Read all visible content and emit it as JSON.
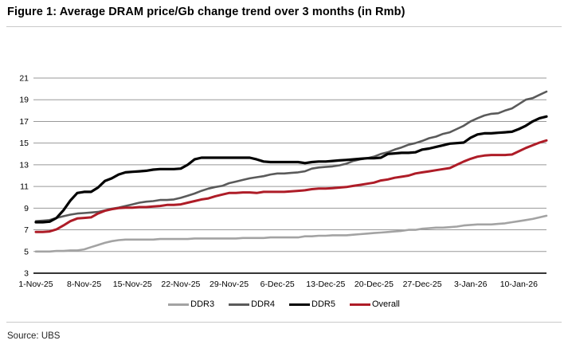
{
  "figure": {
    "title": "Figure 1: Average DRAM price/Gb change trend over 3 months (in Rmb)",
    "source": "Source: UBS"
  },
  "chart_data": {
    "type": "line",
    "title": "Figure 1: Average DRAM price/Gb change trend over 3 months (in Rmb)",
    "xlabel": "",
    "ylabel": "",
    "ylim": [
      3,
      21
    ],
    "y_ticks": [
      3,
      5,
      7,
      9,
      11,
      13,
      15,
      17,
      19,
      21
    ],
    "grid": "horizontal",
    "legend_position": "bottom",
    "x_ticks": [
      {
        "i": 0,
        "label": "1-Nov-25"
      },
      {
        "i": 7,
        "label": "8-Nov-25"
      },
      {
        "i": 14,
        "label": "15-Nov-25"
      },
      {
        "i": 21,
        "label": "22-Nov-25"
      },
      {
        "i": 28,
        "label": "29-Nov-25"
      },
      {
        "i": 35,
        "label": "6-Dec-25"
      },
      {
        "i": 42,
        "label": "13-Dec-25"
      },
      {
        "i": 49,
        "label": "20-Dec-25"
      },
      {
        "i": 56,
        "label": "27-Dec-25"
      },
      {
        "i": 63,
        "label": "3-Jan-26"
      },
      {
        "i": 70,
        "label": "10-Jan-26"
      }
    ],
    "dates": [
      "1-Nov-25",
      "2-Nov-25",
      "3-Nov-25",
      "4-Nov-25",
      "5-Nov-25",
      "6-Nov-25",
      "7-Nov-25",
      "8-Nov-25",
      "9-Nov-25",
      "10-Nov-25",
      "11-Nov-25",
      "12-Nov-25",
      "13-Nov-25",
      "14-Nov-25",
      "15-Nov-25",
      "16-Nov-25",
      "17-Nov-25",
      "18-Nov-25",
      "19-Nov-25",
      "20-Nov-25",
      "21-Nov-25",
      "22-Nov-25",
      "23-Nov-25",
      "24-Nov-25",
      "25-Nov-25",
      "26-Nov-25",
      "27-Nov-25",
      "28-Nov-25",
      "29-Nov-25",
      "30-Nov-25",
      "1-Dec-25",
      "2-Dec-25",
      "3-Dec-25",
      "4-Dec-25",
      "5-Dec-25",
      "6-Dec-25",
      "7-Dec-25",
      "8-Dec-25",
      "9-Dec-25",
      "10-Dec-25",
      "11-Dec-25",
      "12-Dec-25",
      "13-Dec-25",
      "14-Dec-25",
      "15-Dec-25",
      "16-Dec-25",
      "17-Dec-25",
      "18-Dec-25",
      "19-Dec-25",
      "20-Dec-25",
      "21-Dec-25",
      "22-Dec-25",
      "23-Dec-25",
      "24-Dec-25",
      "25-Dec-25",
      "26-Dec-25",
      "27-Dec-25",
      "28-Dec-25",
      "29-Dec-25",
      "30-Dec-25",
      "31-Dec-25",
      "1-Jan-26",
      "2-Jan-26",
      "3-Jan-26",
      "4-Jan-26",
      "5-Jan-26",
      "6-Jan-26",
      "7-Jan-26",
      "8-Jan-26",
      "9-Jan-26",
      "10-Jan-26",
      "11-Jan-26",
      "12-Jan-26",
      "13-Jan-26",
      "14-Jan-26"
    ],
    "series": [
      {
        "name": "DDR3",
        "color": "#a3a3a3",
        "width": 2.6,
        "values": [
          5.0,
          5.0,
          5.0,
          5.05,
          5.05,
          5.1,
          5.1,
          5.2,
          5.4,
          5.6,
          5.8,
          5.95,
          6.05,
          6.1,
          6.1,
          6.1,
          6.1,
          6.1,
          6.15,
          6.15,
          6.15,
          6.15,
          6.15,
          6.2,
          6.2,
          6.2,
          6.2,
          6.2,
          6.2,
          6.2,
          6.25,
          6.25,
          6.25,
          6.25,
          6.3,
          6.3,
          6.3,
          6.3,
          6.3,
          6.4,
          6.4,
          6.45,
          6.45,
          6.5,
          6.5,
          6.5,
          6.55,
          6.6,
          6.65,
          6.7,
          6.75,
          6.8,
          6.85,
          6.9,
          7.0,
          7.0,
          7.1,
          7.15,
          7.2,
          7.2,
          7.25,
          7.3,
          7.4,
          7.45,
          7.5,
          7.5,
          7.5,
          7.55,
          7.6,
          7.7,
          7.8,
          7.9,
          8.0,
          8.15,
          8.3
        ]
      },
      {
        "name": "DDR4",
        "color": "#5a5a5a",
        "width": 2.6,
        "values": [
          7.8,
          7.85,
          7.9,
          8.1,
          8.25,
          8.4,
          8.5,
          8.55,
          8.6,
          8.65,
          8.8,
          8.95,
          9.05,
          9.2,
          9.35,
          9.5,
          9.6,
          9.65,
          9.75,
          9.75,
          9.8,
          9.95,
          10.15,
          10.35,
          10.6,
          10.8,
          10.95,
          11.05,
          11.3,
          11.45,
          11.6,
          11.75,
          11.85,
          11.95,
          12.1,
          12.2,
          12.2,
          12.25,
          12.3,
          12.4,
          12.65,
          12.75,
          12.8,
          12.85,
          12.95,
          13.1,
          13.35,
          13.5,
          13.6,
          13.75,
          14.0,
          14.15,
          14.4,
          14.6,
          14.85,
          15.0,
          15.2,
          15.45,
          15.6,
          15.85,
          16.0,
          16.3,
          16.6,
          17.0,
          17.3,
          17.55,
          17.7,
          17.75,
          18.0,
          18.2,
          18.6,
          19.0,
          19.15,
          19.45,
          19.75
        ]
      },
      {
        "name": "DDR5",
        "color": "#000000",
        "width": 3.2,
        "values": [
          7.7,
          7.7,
          7.75,
          8.1,
          8.8,
          9.7,
          10.4,
          10.5,
          10.5,
          10.9,
          11.5,
          11.75,
          12.1,
          12.3,
          12.35,
          12.4,
          12.45,
          12.55,
          12.6,
          12.6,
          12.6,
          12.65,
          13.0,
          13.5,
          13.65,
          13.65,
          13.65,
          13.65,
          13.65,
          13.65,
          13.65,
          13.65,
          13.5,
          13.3,
          13.25,
          13.25,
          13.25,
          13.25,
          13.25,
          13.15,
          13.25,
          13.3,
          13.3,
          13.35,
          13.4,
          13.45,
          13.5,
          13.55,
          13.6,
          13.6,
          13.65,
          14.0,
          14.05,
          14.1,
          14.1,
          14.15,
          14.4,
          14.5,
          14.65,
          14.8,
          14.95,
          15.0,
          15.05,
          15.5,
          15.8,
          15.9,
          15.9,
          15.95,
          16.0,
          16.05,
          16.3,
          16.6,
          17.0,
          17.3,
          17.45
        ]
      },
      {
        "name": "Overall",
        "color": "#ae1c27",
        "width": 3.0,
        "values": [
          6.8,
          6.8,
          6.85,
          7.05,
          7.4,
          7.8,
          8.05,
          8.1,
          8.15,
          8.5,
          8.75,
          8.9,
          9.0,
          9.05,
          9.05,
          9.1,
          9.1,
          9.15,
          9.2,
          9.3,
          9.3,
          9.35,
          9.5,
          9.65,
          9.8,
          9.9,
          10.1,
          10.25,
          10.4,
          10.4,
          10.45,
          10.45,
          10.4,
          10.5,
          10.5,
          10.5,
          10.5,
          10.55,
          10.6,
          10.65,
          10.75,
          10.8,
          10.8,
          10.85,
          10.9,
          10.95,
          11.05,
          11.15,
          11.25,
          11.35,
          11.55,
          11.65,
          11.8,
          11.9,
          12.0,
          12.2,
          12.3,
          12.4,
          12.5,
          12.6,
          12.7,
          13.0,
          13.3,
          13.55,
          13.75,
          13.85,
          13.9,
          13.9,
          13.9,
          13.95,
          14.25,
          14.55,
          14.8,
          15.05,
          15.25
        ]
      }
    ],
    "colors": {
      "gridline": "#999999",
      "axis": "#1a1a1a",
      "divider": "#c9c9c9"
    }
  }
}
